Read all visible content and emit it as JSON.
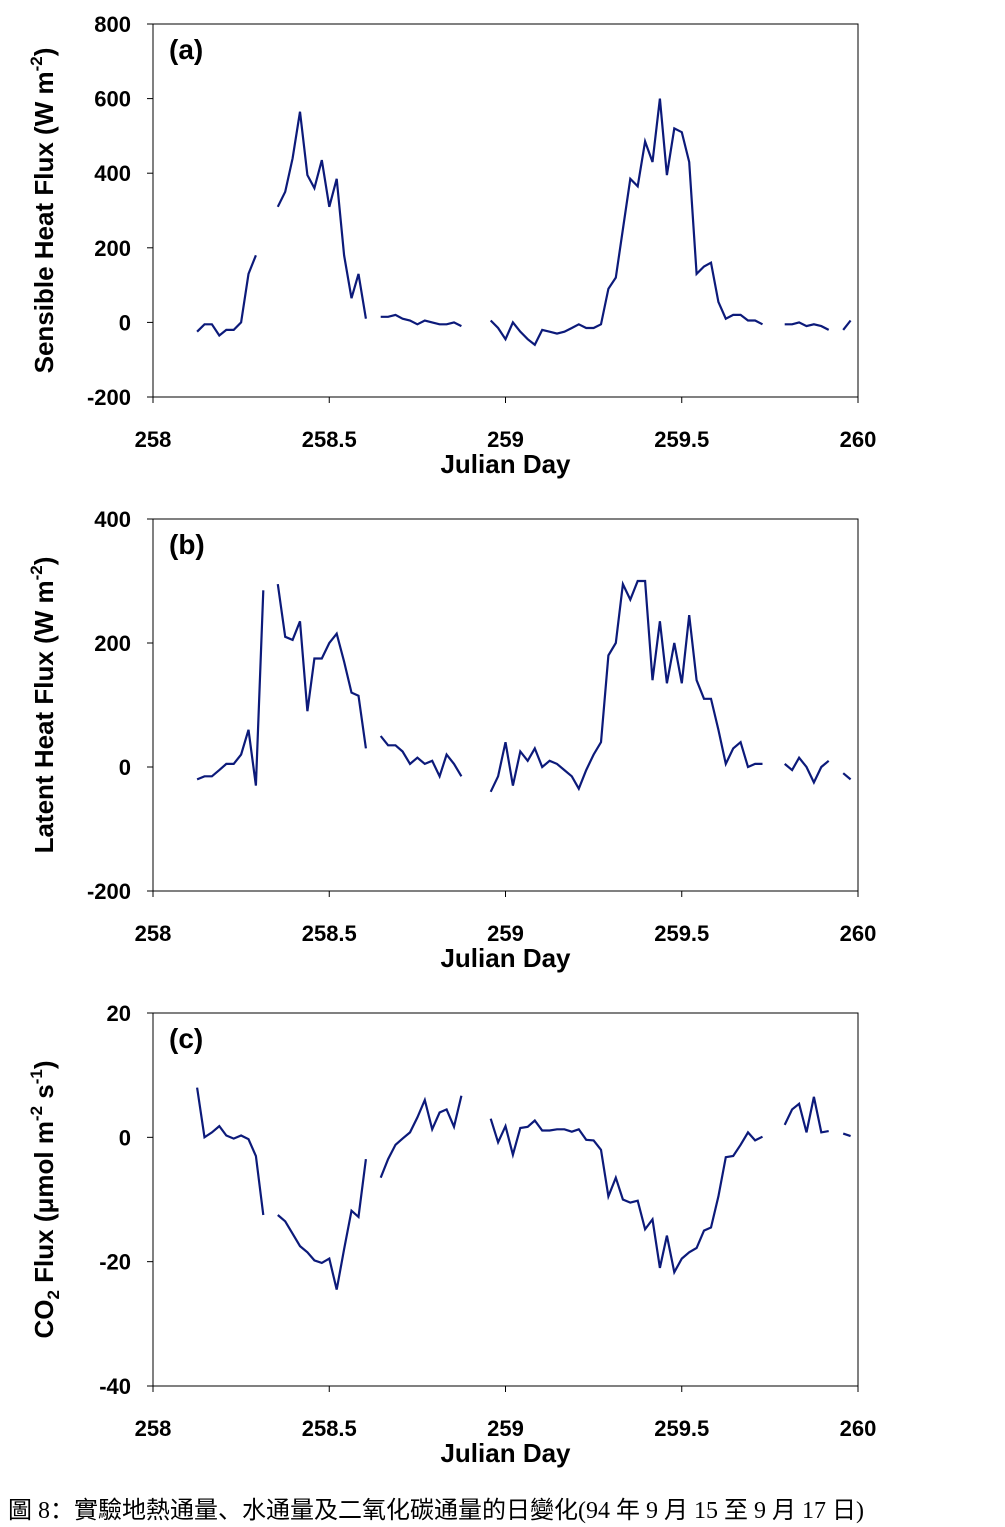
{
  "caption": "圖 8：實驗地熱通量、水通量及二氧化碳通量的日變化(94 年 9 月 15 至 9 月 17 日)",
  "line_color": "#0c1a7a",
  "chart_data": [
    {
      "type": "line",
      "panel_label": "(a)",
      "xlabel": "Julian Day",
      "ylabel": "Sensible Heat Flux (W m-2)",
      "ylabel_parts": [
        "Sensible Heat Flux (W m",
        "-2",
        ")"
      ],
      "xlim": [
        258,
        260
      ],
      "ylim": [
        -200,
        800
      ],
      "xticks": [
        "258",
        "258.5",
        "259",
        "259.5",
        "260"
      ],
      "yticks": [
        "-200",
        "0",
        "200",
        "400",
        "600",
        "800"
      ],
      "grid": false,
      "segments": [
        [
          [
            258.125,
            -25
          ],
          [
            258.146,
            -5
          ],
          [
            258.167,
            -5
          ],
          [
            258.188,
            -35
          ],
          [
            258.208,
            -20
          ],
          [
            258.229,
            -20
          ],
          [
            258.25,
            0
          ],
          [
            258.271,
            130
          ],
          [
            258.292,
            180
          ]
        ],
        [
          [
            258.354,
            310
          ],
          [
            258.375,
            350
          ],
          [
            258.396,
            440
          ],
          [
            258.417,
            565
          ],
          [
            258.438,
            395
          ],
          [
            258.458,
            360
          ],
          [
            258.479,
            435
          ],
          [
            258.5,
            310
          ],
          [
            258.521,
            385
          ],
          [
            258.542,
            180
          ],
          [
            258.563,
            65
          ],
          [
            258.583,
            130
          ],
          [
            258.604,
            10
          ]
        ],
        [
          [
            258.646,
            15
          ],
          [
            258.667,
            15
          ],
          [
            258.688,
            20
          ],
          [
            258.708,
            10
          ],
          [
            258.729,
            5
          ],
          [
            258.75,
            -5
          ],
          [
            258.771,
            5
          ],
          [
            258.792,
            0
          ],
          [
            258.813,
            -5
          ],
          [
            258.833,
            -5
          ],
          [
            258.854,
            0
          ],
          [
            258.875,
            -10
          ]
        ],
        [
          [
            258.958,
            5
          ],
          [
            258.979,
            -15
          ],
          [
            259.0,
            -45
          ],
          [
            259.021,
            0
          ],
          [
            259.042,
            -25
          ],
          [
            259.063,
            -45
          ],
          [
            259.083,
            -60
          ],
          [
            259.104,
            -20
          ],
          [
            259.125,
            -25
          ],
          [
            259.146,
            -30
          ],
          [
            259.167,
            -25
          ],
          [
            259.188,
            -15
          ],
          [
            259.208,
            -5
          ],
          [
            259.229,
            -15
          ],
          [
            259.25,
            -15
          ],
          [
            259.271,
            -5
          ],
          [
            259.292,
            90
          ],
          [
            259.313,
            120
          ],
          [
            259.333,
            250
          ],
          [
            259.354,
            385
          ],
          [
            259.375,
            365
          ],
          [
            259.396,
            485
          ],
          [
            259.417,
            430
          ],
          [
            259.438,
            600
          ],
          [
            259.458,
            395
          ],
          [
            259.479,
            520
          ],
          [
            259.5,
            510
          ],
          [
            259.521,
            430
          ],
          [
            259.542,
            130
          ],
          [
            259.563,
            150
          ],
          [
            259.583,
            160
          ],
          [
            259.604,
            55
          ],
          [
            259.625,
            10
          ],
          [
            259.646,
            20
          ],
          [
            259.667,
            20
          ],
          [
            259.688,
            5
          ],
          [
            259.708,
            5
          ],
          [
            259.729,
            -5
          ]
        ],
        [
          [
            259.792,
            -5
          ],
          [
            259.813,
            -5
          ],
          [
            259.833,
            0
          ],
          [
            259.854,
            -10
          ],
          [
            259.875,
            -5
          ],
          [
            259.896,
            -10
          ],
          [
            259.917,
            -20
          ]
        ],
        [
          [
            259.958,
            -20
          ],
          [
            259.979,
            5
          ]
        ]
      ]
    },
    {
      "type": "line",
      "panel_label": "(b)",
      "xlabel": "Julian Day",
      "ylabel": "Latent Heat Flux (W m-2)",
      "ylabel_parts": [
        "Latent Heat Flux (W m",
        "-2",
        ")"
      ],
      "xlim": [
        258,
        260
      ],
      "ylim": [
        -200,
        400
      ],
      "xticks": [
        "258",
        "258.5",
        "259",
        "259.5",
        "260"
      ],
      "yticks": [
        "-200",
        "0",
        "200",
        "400"
      ],
      "grid": false,
      "segments": [
        [
          [
            258.125,
            -20
          ],
          [
            258.146,
            -15
          ],
          [
            258.167,
            -15
          ],
          [
            258.188,
            -5
          ],
          [
            258.208,
            5
          ],
          [
            258.229,
            5
          ],
          [
            258.25,
            20
          ],
          [
            258.271,
            60
          ],
          [
            258.292,
            -30
          ],
          [
            258.313,
            285
          ]
        ],
        [
          [
            258.354,
            295
          ],
          [
            258.375,
            210
          ],
          [
            258.396,
            205
          ],
          [
            258.417,
            235
          ],
          [
            258.438,
            90
          ],
          [
            258.458,
            175
          ],
          [
            258.479,
            175
          ],
          [
            258.5,
            200
          ],
          [
            258.521,
            215
          ],
          [
            258.542,
            170
          ],
          [
            258.563,
            120
          ],
          [
            258.583,
            115
          ],
          [
            258.604,
            30
          ]
        ],
        [
          [
            258.646,
            50
          ],
          [
            258.667,
            35
          ],
          [
            258.688,
            35
          ],
          [
            258.708,
            25
          ],
          [
            258.729,
            5
          ],
          [
            258.75,
            15
          ],
          [
            258.771,
            5
          ],
          [
            258.792,
            10
          ],
          [
            258.813,
            -15
          ],
          [
            258.833,
            20
          ],
          [
            258.854,
            5
          ],
          [
            258.875,
            -15
          ]
        ],
        [
          [
            258.958,
            -40
          ],
          [
            258.979,
            -15
          ],
          [
            259.0,
            40
          ],
          [
            259.021,
            -30
          ],
          [
            259.042,
            25
          ],
          [
            259.063,
            10
          ],
          [
            259.083,
            30
          ],
          [
            259.104,
            0
          ],
          [
            259.125,
            10
          ],
          [
            259.146,
            5
          ],
          [
            259.167,
            -5
          ],
          [
            259.188,
            -15
          ],
          [
            259.208,
            -35
          ],
          [
            259.229,
            -5
          ],
          [
            259.25,
            20
          ],
          [
            259.271,
            40
          ],
          [
            259.292,
            180
          ],
          [
            259.313,
            200
          ],
          [
            259.333,
            295
          ],
          [
            259.354,
            270
          ],
          [
            259.375,
            300
          ],
          [
            259.396,
            300
          ],
          [
            259.417,
            140
          ],
          [
            259.438,
            235
          ],
          [
            259.458,
            135
          ],
          [
            259.479,
            200
          ],
          [
            259.5,
            135
          ],
          [
            259.521,
            245
          ],
          [
            259.542,
            140
          ],
          [
            259.563,
            110
          ],
          [
            259.583,
            110
          ],
          [
            259.604,
            60
          ],
          [
            259.625,
            5
          ],
          [
            259.646,
            30
          ],
          [
            259.667,
            40
          ],
          [
            259.688,
            0
          ],
          [
            259.708,
            5
          ],
          [
            259.729,
            5
          ]
        ],
        [
          [
            259.792,
            5
          ],
          [
            259.813,
            -5
          ],
          [
            259.833,
            15
          ],
          [
            259.854,
            0
          ],
          [
            259.875,
            -25
          ],
          [
            259.896,
            0
          ],
          [
            259.917,
            10
          ]
        ],
        [
          [
            259.958,
            -10
          ],
          [
            259.979,
            -20
          ]
        ]
      ]
    },
    {
      "type": "line",
      "panel_label": "(c)",
      "xlabel": "Julian Day",
      "ylabel": "CO2 Flux (μmol m-2 s-1)",
      "ylabel_parts": [
        "CO",
        "2",
        " Flux (μmol m",
        "-2",
        " s",
        "-1",
        ")"
      ],
      "xlim": [
        258,
        260
      ],
      "ylim": [
        -40,
        20
      ],
      "xticks": [
        "258",
        "258.5",
        "259",
        "259.5",
        "260"
      ],
      "yticks": [
        "-40",
        "-20",
        "0",
        "20"
      ],
      "grid": false,
      "segments": [
        [
          [
            258.125,
            8
          ],
          [
            258.146,
            0
          ],
          [
            258.167,
            0.8
          ],
          [
            258.188,
            1.8
          ],
          [
            258.208,
            0.3
          ],
          [
            258.229,
            -0.2
          ],
          [
            258.25,
            0.3
          ],
          [
            258.271,
            -0.3
          ],
          [
            258.292,
            -3
          ],
          [
            258.313,
            -12.5
          ]
        ],
        [
          [
            258.354,
            -12.5
          ],
          [
            258.375,
            -13.5
          ],
          [
            258.396,
            -15.5
          ],
          [
            258.417,
            -17.5
          ],
          [
            258.438,
            -18.5
          ],
          [
            258.458,
            -19.8
          ],
          [
            258.479,
            -20.2
          ],
          [
            258.5,
            -19.5
          ],
          [
            258.521,
            -24.5
          ],
          [
            258.542,
            -18
          ],
          [
            258.563,
            -11.8
          ],
          [
            258.583,
            -12.8
          ],
          [
            258.604,
            -3.5
          ]
        ],
        [
          [
            258.646,
            -6.5
          ],
          [
            258.667,
            -3.5
          ],
          [
            258.688,
            -1.2
          ],
          [
            258.708,
            -0.2
          ],
          [
            258.729,
            0.8
          ],
          [
            258.75,
            3.2
          ],
          [
            258.771,
            6
          ],
          [
            258.792,
            1.3
          ],
          [
            258.813,
            4
          ],
          [
            258.833,
            4.5
          ],
          [
            258.854,
            1.7
          ],
          [
            258.875,
            6.7
          ]
        ],
        [
          [
            258.958,
            3
          ],
          [
            258.979,
            -0.8
          ],
          [
            259.0,
            1.8
          ],
          [
            259.021,
            -2.8
          ],
          [
            259.042,
            1.5
          ],
          [
            259.063,
            1.7
          ],
          [
            259.083,
            2.7
          ],
          [
            259.104,
            1.1
          ],
          [
            259.125,
            1.1
          ],
          [
            259.146,
            1.3
          ],
          [
            259.167,
            1.3
          ],
          [
            259.188,
            0.9
          ],
          [
            259.208,
            1.3
          ],
          [
            259.229,
            -0.4
          ],
          [
            259.25,
            -0.5
          ],
          [
            259.271,
            -2
          ],
          [
            259.292,
            -9.5
          ],
          [
            259.313,
            -6.5
          ],
          [
            259.333,
            -10
          ],
          [
            259.354,
            -10.5
          ],
          [
            259.375,
            -10.2
          ],
          [
            259.396,
            -14.8
          ],
          [
            259.417,
            -13.2
          ],
          [
            259.438,
            -21
          ],
          [
            259.458,
            -15.8
          ],
          [
            259.479,
            -21.7
          ],
          [
            259.5,
            -19.5
          ],
          [
            259.521,
            -18.5
          ],
          [
            259.542,
            -17.8
          ],
          [
            259.563,
            -15
          ],
          [
            259.583,
            -14.5
          ],
          [
            259.604,
            -9.5
          ],
          [
            259.625,
            -3.2
          ],
          [
            259.646,
            -3
          ],
          [
            259.667,
            -1.2
          ],
          [
            259.688,
            0.8
          ],
          [
            259.708,
            -0.5
          ],
          [
            259.729,
            0.1
          ]
        ],
        [
          [
            259.792,
            2
          ],
          [
            259.813,
            4.5
          ],
          [
            259.833,
            5.4
          ],
          [
            259.854,
            0.8
          ],
          [
            259.875,
            6.5
          ],
          [
            259.896,
            0.8
          ],
          [
            259.917,
            1
          ]
        ],
        [
          [
            259.958,
            0.6
          ],
          [
            259.979,
            0.2
          ]
        ]
      ]
    }
  ]
}
